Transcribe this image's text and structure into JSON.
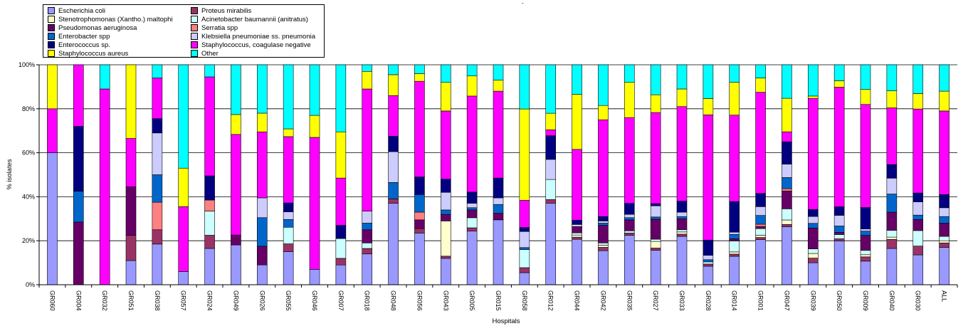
{
  "chart_data": {
    "type": "bar",
    "stacked": true,
    "xlabel": "Hospitals",
    "ylabel": "% isolates",
    "ylim": [
      0,
      100
    ],
    "yticks": [
      "0%",
      "20%",
      "40%",
      "60%",
      "80%",
      "100%"
    ],
    "grid": true,
    "legend_position": "top-left",
    "categories": [
      "GR060",
      "GR004",
      "GR032",
      "GR051",
      "GR038",
      "GR057",
      "GR024",
      "GR049",
      "GR026",
      "GR055",
      "GR046",
      "GR007",
      "GR018",
      "GR048",
      "GR056",
      "GR043",
      "GR005",
      "GR015",
      "GR058",
      "GR012",
      "GR044",
      "GR042",
      "GR035",
      "GR027",
      "GR033",
      "GR028",
      "GR014",
      "GR001",
      "GR047",
      "GR039",
      "GR050",
      "GR009",
      "GR040",
      "GR030",
      "ALL"
    ],
    "series": [
      {
        "name": "Escherichia coli",
        "color": "#9999ff",
        "values": [
          60,
          0,
          0,
          11,
          18.5,
          6,
          16.5,
          18,
          9,
          15,
          7,
          9,
          14,
          37,
          23.5,
          12,
          24,
          29.5,
          6,
          34.5,
          21.5,
          15.5,
          22.5,
          15.5,
          22,
          8.5,
          13,
          20.5,
          26,
          9.5,
          20.5,
          11,
          16,
          13.5,
          17
        ]
      },
      {
        "name": "Proteus mirabilis",
        "color": "#993366",
        "values": [
          0,
          0,
          0,
          11.5,
          6.5,
          0,
          6,
          0,
          0,
          3.5,
          0,
          3,
          2.5,
          2,
          2,
          1,
          1.5,
          0,
          2.5,
          1.5,
          1,
          1.5,
          1,
          1,
          1,
          1,
          1,
          1,
          1,
          2,
          1,
          2,
          4,
          4,
          2
        ]
      },
      {
        "name": "Stenotrophomonas (Xantho.) maltophi",
        "color": "#ffffcc",
        "values": [
          0,
          0,
          0,
          0,
          0,
          0,
          0,
          0,
          0,
          0,
          0,
          0,
          0,
          0,
          0,
          16,
          0,
          0,
          0,
          0,
          1,
          1,
          0,
          3,
          1,
          0,
          1,
          1,
          2,
          2,
          0,
          1,
          1,
          0,
          1
        ]
      },
      {
        "name": "Acinetobacter baumannii (anitratus)",
        "color": "#ccffff",
        "values": [
          0,
          0,
          0,
          0,
          0,
          0,
          11,
          0,
          0,
          7.5,
          0,
          9,
          2.5,
          0,
          0,
          0,
          4.5,
          0,
          9,
          8.5,
          1,
          1,
          1,
          1,
          1,
          1,
          5,
          3,
          5,
          2,
          2,
          2,
          3,
          7,
          2
        ]
      },
      {
        "name": "Pseudomonas aeruginosa",
        "color": "#660066",
        "values": [
          0,
          28.5,
          0,
          22,
          0,
          0,
          0,
          4.5,
          8.5,
          0,
          0,
          0,
          6,
          0,
          4,
          3,
          3.5,
          3,
          0,
          0,
          3,
          8,
          5,
          9,
          5,
          0,
          1,
          1,
          8,
          9,
          1,
          7,
          8,
          5,
          6
        ]
      },
      {
        "name": "Serratia spp",
        "color": "#ff8080",
        "values": [
          0,
          0,
          0,
          0,
          12.5,
          0,
          5,
          0,
          0,
          0,
          0,
          0,
          0,
          0,
          3.5,
          0,
          0,
          0,
          0,
          0,
          0,
          0,
          0,
          0,
          0,
          0,
          0,
          1,
          1,
          0,
          0,
          0,
          0,
          0,
          0
        ]
      },
      {
        "name": "Enterobacter spp",
        "color": "#0066cc",
        "values": [
          0,
          14,
          0,
          0,
          12.5,
          0,
          0,
          0,
          13,
          3.5,
          0,
          0,
          3,
          7.5,
          8,
          2,
          1,
          4,
          1,
          0,
          0,
          1,
          1,
          1,
          1,
          1,
          2,
          4,
          5,
          2,
          3,
          2,
          8,
          2,
          3
        ]
      },
      {
        "name": "Klebsiella pneumoniae ss. pneumonia",
        "color": "#ccccff",
        "values": [
          0,
          0,
          0,
          0,
          19,
          0,
          0,
          0,
          9,
          3.5,
          0,
          0,
          5.5,
          14,
          0,
          8,
          2,
          3,
          8,
          8.5,
          1,
          1,
          1.5,
          5,
          2,
          2,
          1,
          4,
          6,
          3,
          5,
          1,
          7,
          6,
          4
        ]
      },
      {
        "name": "Enterococcus sp.",
        "color": "#000080",
        "values": [
          0,
          29.5,
          0,
          0,
          6.5,
          0,
          11,
          0,
          0,
          4,
          0,
          6,
          0,
          7,
          8,
          6,
          5,
          9,
          2,
          10,
          2,
          2,
          5,
          1,
          5,
          7,
          14,
          6,
          10,
          3,
          4,
          10,
          6,
          4,
          6
        ]
      },
      {
        "name": "Staphylococcus, coagulase negative",
        "color": "#ff00ff",
        "values": [
          20,
          28,
          89,
          22,
          18.5,
          29.5,
          45,
          45.5,
          30,
          30,
          60,
          21.5,
          55.5,
          18.5,
          43.5,
          31,
          43,
          39.5,
          13.5,
          2.5,
          33.5,
          44,
          39,
          41,
          43,
          57.5,
          39.5,
          46,
          4.5,
          48,
          56,
          48,
          25,
          38,
          38
        ]
      },
      {
        "name": "Staphylococcus aureus",
        "color": "#ffff00",
        "values": [
          20,
          0,
          0,
          33.5,
          0,
          17.5,
          0,
          9,
          8.5,
          3.5,
          10,
          21,
          8,
          9.5,
          3.5,
          13,
          9,
          5,
          45.5,
          7,
          26,
          6.5,
          16,
          8,
          8,
          7.5,
          15,
          6.5,
          15,
          1,
          3,
          7,
          7.5,
          7,
          9
        ]
      },
      {
        "name": "Other",
        "color": "#00ffff",
        "values": [
          0,
          0,
          11,
          0,
          6,
          47,
          5.5,
          22.5,
          22,
          29,
          23,
          30.5,
          3,
          4.5,
          4,
          8,
          5,
          7,
          22,
          20.5,
          14,
          18.5,
          8,
          13.5,
          11,
          15.5,
          8,
          6,
          15,
          13.5,
          7.5,
          11.5,
          11.5,
          13,
          12
        ]
      }
    ]
  },
  "legend_order": [
    "Escherichia coli",
    "Proteus mirabilis",
    "Stenotrophomonas (Xantho.) maltophi",
    "Acinetobacter baumannii (anitratus)",
    "Pseudomonas aeruginosa",
    "Serratia spp",
    "Enterobacter spp",
    "Klebsiella pneumoniae ss. pneumonia",
    "Enterococcus sp.",
    "Staphylococcus, coagulase negative",
    "Staphylococcus aureus",
    "Other"
  ],
  "stray_mark": "-"
}
